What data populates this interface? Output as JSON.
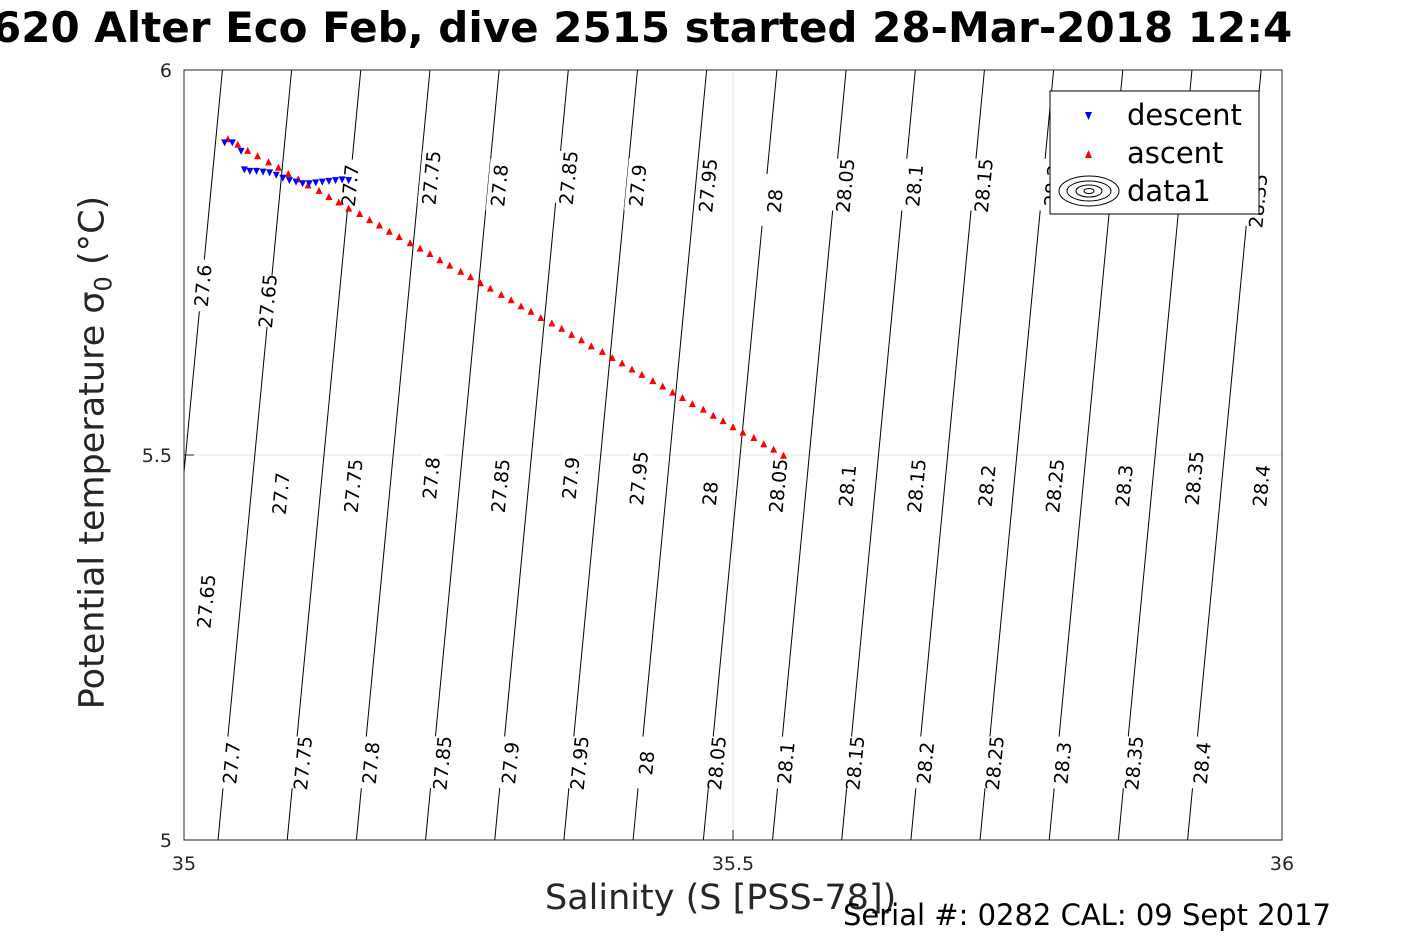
{
  "title": "620 Alter Eco Feb, dive 2515 started 28-Mar-2018 12:4",
  "footer": "Serial #: 0282  CAL: 09 Sept 2017",
  "chart_data": {
    "type": "scatter",
    "xlabel": "Salinity (S [PSS-78])",
    "ylabel": "Potential temperature σ0 (°C)",
    "xlim": [
      35,
      36
    ],
    "ylim": [
      5,
      6
    ],
    "xticks": [
      "35",
      "35.5",
      "36"
    ],
    "yticks": [
      "5",
      "5.5",
      "6"
    ],
    "grid": true,
    "legend_position": "top-right",
    "legend": [
      {
        "name": "descent",
        "marker": "triangle-down",
        "color": "#0000ff"
      },
      {
        "name": "ascent",
        "marker": "triangle-up",
        "color": "#ff0000"
      },
      {
        "name": "data1",
        "marker": "contour",
        "color": "#000000"
      }
    ],
    "series": [
      {
        "name": "descent",
        "x": [
          35.037,
          35.044,
          35.052,
          35.055,
          35.06,
          35.066,
          35.072,
          35.078,
          35.084,
          35.09,
          35.096,
          35.102,
          35.108,
          35.114,
          35.12,
          35.126,
          35.132,
          35.138,
          35.144,
          35.15
        ],
        "y": [
          5.906,
          5.906,
          5.895,
          5.871,
          5.869,
          5.869,
          5.868,
          5.867,
          5.864,
          5.86,
          5.857,
          5.855,
          5.853,
          5.853,
          5.854,
          5.855,
          5.856,
          5.857,
          5.858,
          5.857
        ]
      },
      {
        "name": "ascent",
        "x": [
          35.04,
          35.049,
          35.058,
          35.067,
          35.077,
          35.086,
          35.095,
          35.104,
          35.113,
          35.123,
          35.132,
          35.141,
          35.15,
          35.16,
          35.169,
          35.178,
          35.187,
          35.196,
          35.206,
          35.215,
          35.224,
          35.233,
          35.242,
          35.252,
          35.261,
          35.27,
          35.279,
          35.289,
          35.298,
          35.307,
          35.316,
          35.325,
          35.335,
          35.344,
          35.353,
          35.362,
          35.371,
          35.381,
          35.39,
          35.399,
          35.408,
          35.417,
          35.427,
          35.436,
          35.445,
          35.454,
          35.463,
          35.473,
          35.482,
          35.491,
          35.5,
          35.509,
          35.519,
          35.528,
          35.537,
          35.546
        ],
        "y": [
          5.91,
          5.903,
          5.895,
          5.888,
          5.88,
          5.873,
          5.865,
          5.858,
          5.85,
          5.843,
          5.835,
          5.828,
          5.82,
          5.813,
          5.805,
          5.798,
          5.79,
          5.783,
          5.775,
          5.768,
          5.761,
          5.753,
          5.746,
          5.738,
          5.731,
          5.723,
          5.716,
          5.708,
          5.701,
          5.693,
          5.686,
          5.678,
          5.671,
          5.664,
          5.656,
          5.649,
          5.641,
          5.634,
          5.626,
          5.619,
          5.611,
          5.604,
          5.596,
          5.589,
          5.581,
          5.574,
          5.566,
          5.559,
          5.551,
          5.544,
          5.536,
          5.529,
          5.522,
          5.514,
          5.507,
          5.499
        ]
      }
    ],
    "contours": {
      "name": "data1",
      "levels": [
        "27.6",
        "27.65",
        "27.7",
        "27.75",
        "27.8",
        "27.85",
        "27.9",
        "27.95",
        "28",
        "28.05",
        "28.1",
        "28.15",
        "28.2",
        "28.25",
        "28.3",
        "28.35",
        "28.4"
      ],
      "level_values": [
        27.6,
        27.65,
        27.7,
        27.75,
        27.8,
        27.85,
        27.9,
        27.95,
        28.0,
        28.05,
        28.1,
        28.15,
        28.2,
        28.25,
        28.3,
        28.35,
        28.4
      ],
      "s_at_t5": [
        34.905,
        34.968,
        35.031,
        35.094,
        35.157,
        35.22,
        35.283,
        35.346,
        35.409,
        35.473,
        35.536,
        35.599,
        35.662,
        35.725,
        35.788,
        35.851,
        35.914
      ],
      "ds_dt": 0.067,
      "labels": [
        {
          "text": "27.6",
          "s": 35.017,
          "t": 5.72
        },
        {
          "text": "27.65",
          "s": 35.076,
          "t": 5.7
        },
        {
          "text": "27.7",
          "s": 35.151,
          "t": 5.85
        },
        {
          "text": "27.75",
          "s": 35.225,
          "t": 5.86
        },
        {
          "text": "27.8",
          "s": 35.287,
          "t": 5.85
        },
        {
          "text": "27.85",
          "s": 35.35,
          "t": 5.86
        },
        {
          "text": "27.9",
          "s": 35.413,
          "t": 5.85
        },
        {
          "text": "27.95",
          "s": 35.477,
          "t": 5.85
        },
        {
          "text": "28",
          "s": 35.538,
          "t": 5.83
        },
        {
          "text": "28.05",
          "s": 35.602,
          "t": 5.85
        },
        {
          "text": "28.1",
          "s": 35.665,
          "t": 5.85
        },
        {
          "text": "28.15",
          "s": 35.728,
          "t": 5.85
        },
        {
          "text": "28.2",
          "s": 35.791,
          "t": 5.85
        },
        {
          "text": "28.25",
          "s": 35.854,
          "t": 5.85
        },
        {
          "text": "28.35",
          "s": 35.978,
          "t": 5.83
        },
        {
          "text": "27.65",
          "s": 35.02,
          "t": 5.31
        },
        {
          "text": "27.7",
          "s": 35.088,
          "t": 5.45
        },
        {
          "text": "27.75",
          "s": 35.154,
          "t": 5.46
        },
        {
          "text": "27.8",
          "s": 35.225,
          "t": 5.47
        },
        {
          "text": "27.85",
          "s": 35.288,
          "t": 5.46
        },
        {
          "text": "27.9",
          "s": 35.352,
          "t": 5.47
        },
        {
          "text": "27.95",
          "s": 35.414,
          "t": 5.47
        },
        {
          "text": "28",
          "s": 35.479,
          "t": 5.45
        },
        {
          "text": "28.05",
          "s": 35.541,
          "t": 5.46
        },
        {
          "text": "28.1",
          "s": 35.604,
          "t": 5.46
        },
        {
          "text": "28.15",
          "s": 35.667,
          "t": 5.46
        },
        {
          "text": "28.2",
          "s": 35.731,
          "t": 5.46
        },
        {
          "text": "28.25",
          "s": 35.793,
          "t": 5.46
        },
        {
          "text": "28.3",
          "s": 35.856,
          "t": 5.46
        },
        {
          "text": "28.35",
          "s": 35.92,
          "t": 5.47
        },
        {
          "text": "28.4",
          "s": 35.981,
          "t": 5.46
        },
        {
          "text": "27.7",
          "s": 35.043,
          "t": 5.1
        },
        {
          "text": "27.75",
          "s": 35.108,
          "t": 5.1
        },
        {
          "text": "27.8",
          "s": 35.17,
          "t": 5.1
        },
        {
          "text": "27.85",
          "s": 35.235,
          "t": 5.1
        },
        {
          "text": "27.9",
          "s": 35.297,
          "t": 5.1
        },
        {
          "text": "27.95",
          "s": 35.36,
          "t": 5.1
        },
        {
          "text": "28",
          "s": 35.421,
          "t": 5.1
        },
        {
          "text": "28.05",
          "s": 35.485,
          "t": 5.1
        },
        {
          "text": "28.1",
          "s": 35.548,
          "t": 5.1
        },
        {
          "text": "28.15",
          "s": 35.611,
          "t": 5.1
        },
        {
          "text": "28.2",
          "s": 35.675,
          "t": 5.1
        },
        {
          "text": "28.25",
          "s": 35.738,
          "t": 5.1
        },
        {
          "text": "28.3",
          "s": 35.8,
          "t": 5.1
        },
        {
          "text": "28.35",
          "s": 35.865,
          "t": 5.1
        },
        {
          "text": "28.4",
          "s": 35.927,
          "t": 5.1
        }
      ]
    }
  }
}
